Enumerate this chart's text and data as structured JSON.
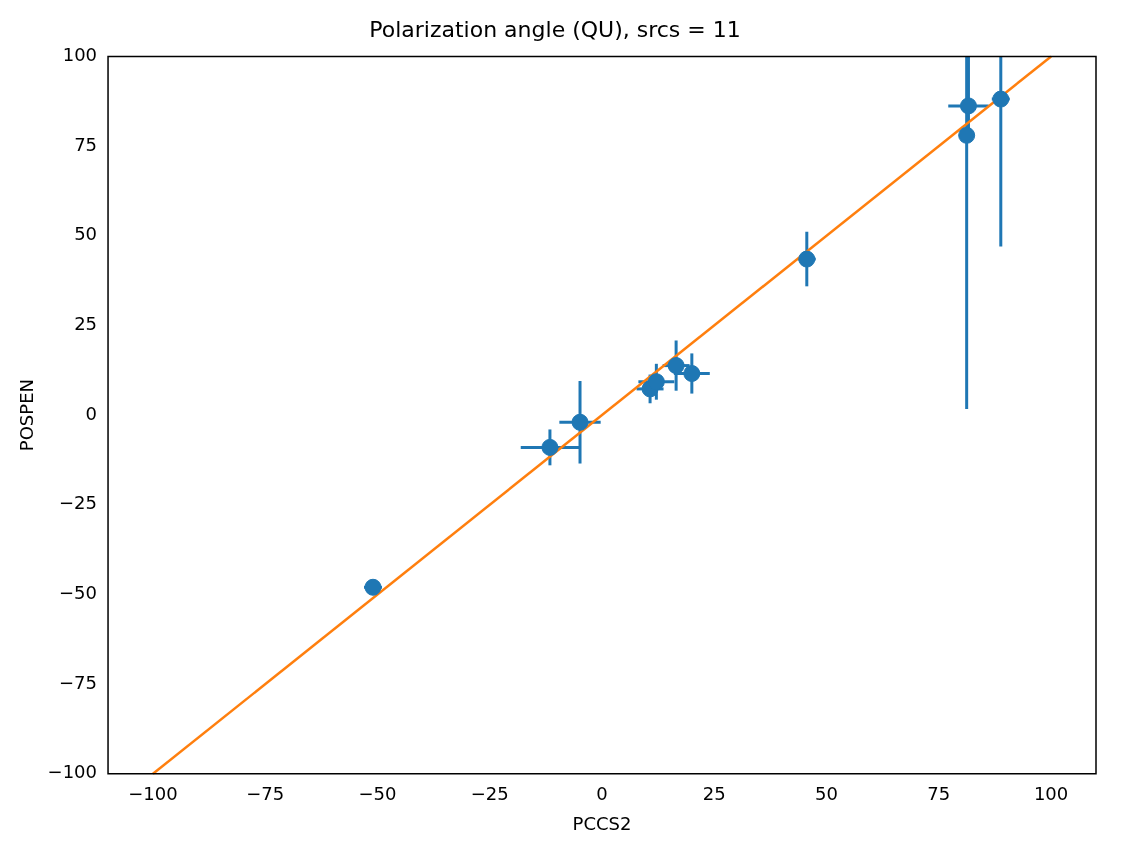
{
  "chart_data": {
    "type": "scatter",
    "title": "Polarization angle (QU), srcs = 11",
    "xlabel": "PCCS2",
    "ylabel": "POSPEN",
    "xlim": [
      -110,
      110
    ],
    "xticks": [
      -100,
      -75,
      -50,
      -25,
      0,
      25,
      50,
      75,
      100
    ],
    "ylim": [
      -100,
      100
    ],
    "yticks": [
      -100,
      -75,
      -50,
      -25,
      0,
      25,
      50,
      75,
      100
    ],
    "grid": false,
    "legend": false,
    "marker": "circle",
    "series": [
      {
        "type": "scatter",
        "color": "#1f77b4",
        "x": [
          -51,
          -11.6,
          -4.9,
          10.7,
          12.1,
          16.5,
          20,
          45.6,
          81.6,
          81.2,
          88.8
        ],
        "values": [
          -48,
          -9,
          -2,
          7.3,
          9.3,
          13.8,
          11.6,
          43.5,
          86.2,
          78,
          88.1
        ],
        "errors": [
          1,
          5,
          11.5,
          4,
          5,
          7,
          5.6,
          7.6,
          [
            80,
            100
          ],
          [
            1.7,
            100
          ],
          [
            47,
            100
          ]
        ],
        "xerrors": [
          2,
          6.5,
          4.6,
          3,
          4,
          3,
          4,
          2,
          4.5,
          1.5,
          2
        ]
      },
      {
        "type": "line",
        "color": "#ff7f0e",
        "x": [
          -100,
          100
        ],
        "values": [
          -100,
          100
        ],
        "marker": "none",
        "line_style": "solid"
      }
    ]
  }
}
